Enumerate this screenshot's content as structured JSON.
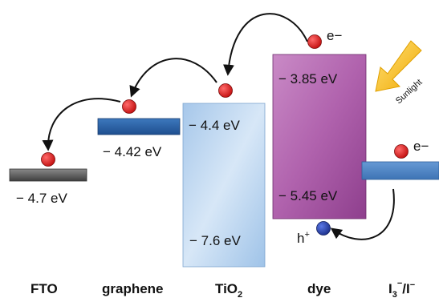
{
  "materials": {
    "fto": "FTO",
    "graphene": "graphene",
    "tio2_main": "TiO",
    "tio2_sub": "2",
    "dye": "dye",
    "redox_i3": "I",
    "redox_sub": "3",
    "redox_sup": "−",
    "redox_rest": "/I",
    "redox_sup2": "−"
  },
  "energy_levels": {
    "fto": "− 4.7 eV",
    "graphene": "− 4.42 eV",
    "tio2_cb": "− 4.4 eV",
    "tio2_vb": "− 7.6 eV",
    "dye_lumo": "− 3.85 eV",
    "dye_homo": "− 5.45 eV"
  },
  "charges": {
    "electron_dye": "e−",
    "electron_redox": "e−",
    "hole_base": "h",
    "hole_sup": "+"
  },
  "sunlight_label": "Sunlight",
  "colors": {
    "fto": "#555555",
    "graphene": "#2d63a6",
    "tio2": "#b5d2ee",
    "dye": "#b567b1",
    "redox": "#4f86c6",
    "electron": "#e02020",
    "hole": "#2a45b8",
    "sunlight": "#f5c000"
  }
}
